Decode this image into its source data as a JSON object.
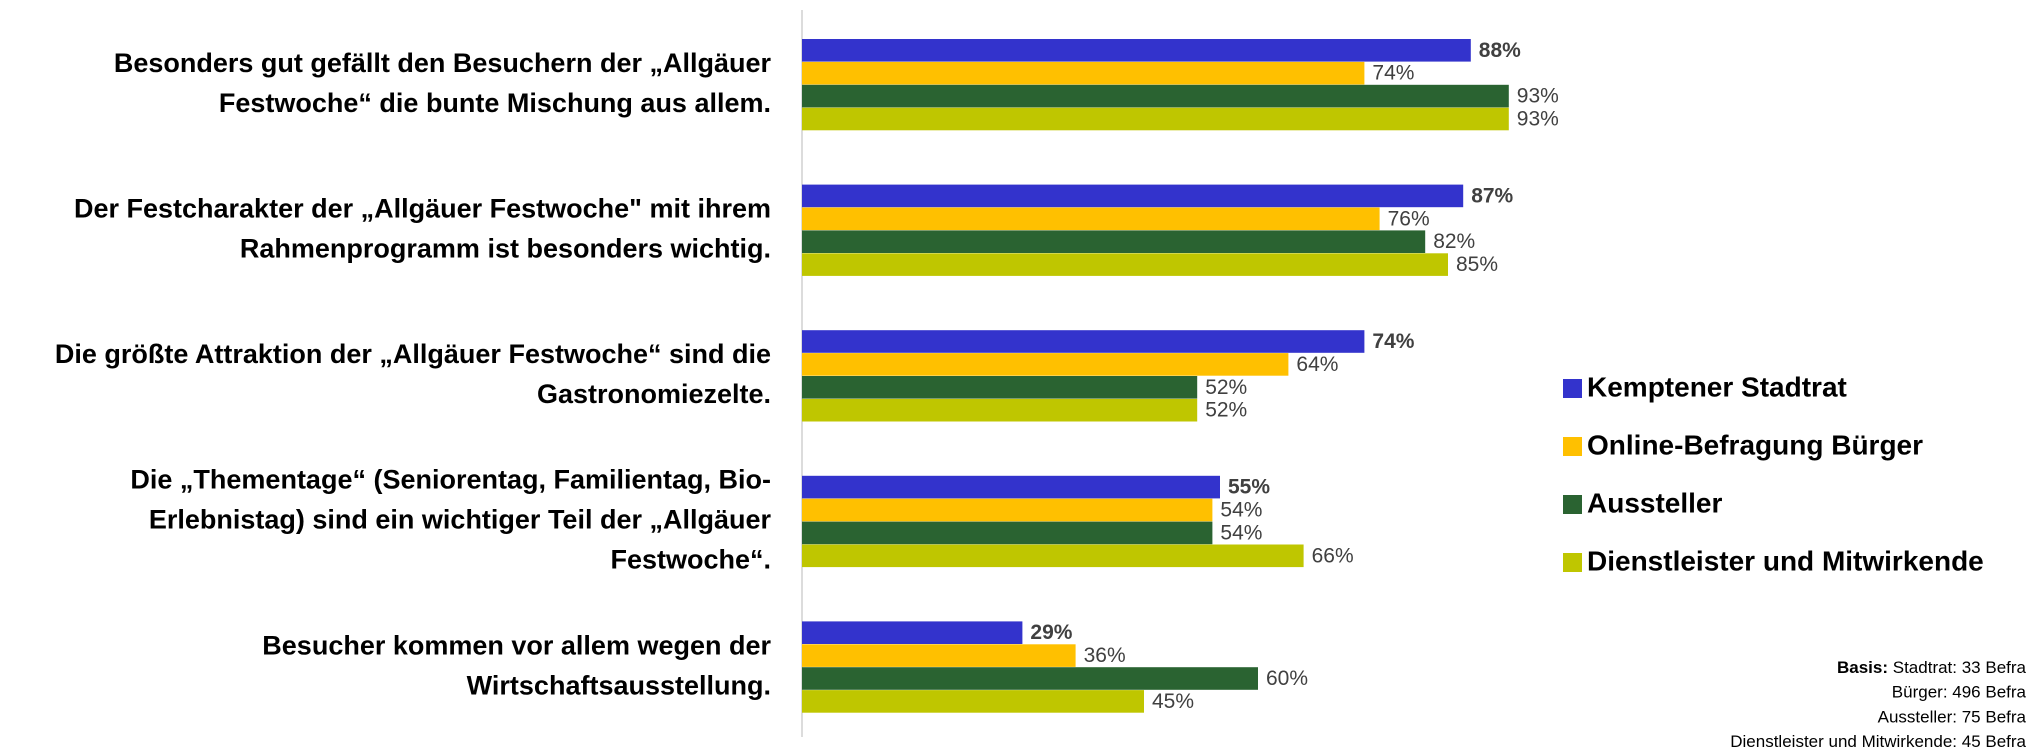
{
  "chart_data": {
    "type": "bar",
    "orientation": "horizontal",
    "categories": [
      [
        "Besonders gut gefällt den Besuchern der „Allgäuer",
        "Festwoche“ die bunte Mischung aus allem."
      ],
      [
        "Der Festcharakter der „Allgäuer Festwoche\" mit ihrem",
        "Rahmenprogramm ist besonders wichtig."
      ],
      [
        "Die größte Attraktion der „Allgäuer Festwoche“ sind die",
        "Gastronomiezelte."
      ],
      [
        "Die „Thementage“ (Seniorentag, Familientag, Bio-",
        "Erlebnistag) sind ein wichtiger Teil der „Allgäuer",
        "Festwoche“."
      ],
      [
        "Besucher kommen vor allem wegen der",
        "Wirtschaftsausstellung."
      ]
    ],
    "series": [
      {
        "name": "Kemptener Stadtrat",
        "color": "#3333cc",
        "values": [
          88,
          87,
          74,
          55,
          29
        ],
        "value_labels": [
          "88%",
          "87%",
          "74%",
          "55%",
          "29%"
        ]
      },
      {
        "name": "Online-Befragung  Bürger",
        "color": "#ffc000",
        "values": [
          74,
          76,
          64,
          54,
          36
        ],
        "value_labels": [
          "74%",
          "76%",
          "64%",
          "54%",
          "36%"
        ]
      },
      {
        "name": "Aussteller",
        "color": "#2a6331",
        "values": [
          93,
          82,
          52,
          54,
          60
        ],
        "value_labels": [
          "93%",
          "82%",
          "52%",
          "54%",
          "60%"
        ]
      },
      {
        "name": "Dienstleister und Mitwirkende",
        "color": "#bfc600",
        "values": [
          93,
          85,
          52,
          66,
          45
        ],
        "value_labels": [
          "93%",
          "85%",
          "52%",
          "66%",
          "45%"
        ]
      }
    ],
    "xlim": [
      0,
      100
    ],
    "legend": "right",
    "footnote": {
      "label": "Basis:",
      "lines": [
        "Stadtrat: 33 Befra",
        "Bürger: 496 Befra",
        "Aussteller: 75 Befra",
        "Dienstleister und Mitwirkende: 45 Befra"
      ]
    }
  }
}
